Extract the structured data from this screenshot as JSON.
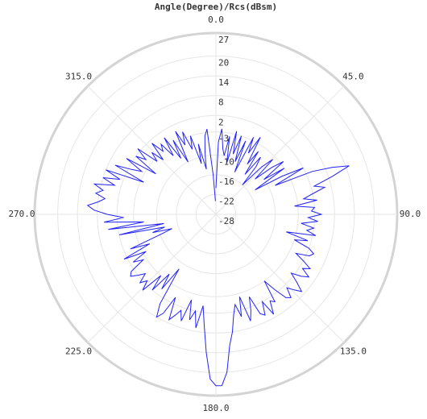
{
  "chart_data": {
    "type": "polar-line",
    "title": "Angle(Degree)/Rcs(dBsm)",
    "x": [
      0,
      2,
      4,
      6,
      8,
      10,
      12,
      14,
      16,
      18,
      20,
      22,
      24,
      26,
      28,
      30,
      32,
      34,
      36,
      38,
      40,
      42,
      44,
      46,
      48,
      50,
      52,
      54,
      56,
      58,
      60,
      62,
      64,
      66,
      68,
      70,
      72,
      74,
      76,
      78,
      80,
      82,
      84,
      86,
      88,
      90,
      92,
      94,
      96,
      98,
      100,
      102,
      104,
      106,
      108,
      110,
      112,
      114,
      116,
      118,
      120,
      122,
      124,
      126,
      128,
      130,
      132,
      134,
      136,
      138,
      140,
      142,
      144,
      146,
      148,
      150,
      152,
      154,
      156,
      158,
      160,
      162,
      164,
      166,
      168,
      170,
      172,
      174,
      176,
      178,
      180,
      182,
      184,
      186,
      188,
      190,
      192,
      194,
      196,
      198,
      200,
      202,
      204,
      206,
      208,
      210,
      212,
      214,
      216,
      218,
      220,
      222,
      224,
      226,
      228,
      230,
      232,
      234,
      236,
      238,
      240,
      242,
      244,
      246,
      248,
      250,
      252,
      254,
      256,
      258,
      260,
      262,
      264,
      266,
      268,
      270,
      272,
      274,
      276,
      278,
      280,
      282,
      284,
      286,
      288,
      290,
      292,
      294,
      296,
      298,
      300,
      302,
      304,
      306,
      308,
      310,
      312,
      314,
      316,
      318,
      320,
      322,
      324,
      326,
      328,
      330,
      332,
      334,
      336,
      338,
      340,
      342,
      344,
      346,
      348,
      350,
      352,
      354,
      356,
      358
    ],
    "values": [
      -20,
      -6,
      -2,
      -8,
      -10,
      -4,
      -12,
      -2,
      -9,
      -3,
      -11,
      -4,
      -14,
      -2,
      -7,
      -1,
      -10,
      -5,
      -13,
      -6,
      -9,
      -16,
      -8,
      -4,
      -12,
      -6,
      -2,
      -10,
      -3,
      -14,
      -5,
      2,
      -8,
      4,
      10,
      15,
      9,
      3,
      6,
      2,
      -1,
      3,
      -4,
      2,
      1,
      4,
      0,
      3,
      -2,
      2,
      0,
      3,
      -6,
      1,
      -3,
      2,
      4,
      3,
      -1,
      2,
      5,
      3,
      6,
      4,
      1,
      4,
      7,
      5,
      3,
      6,
      5,
      1,
      -3,
      4,
      3,
      7,
      2,
      6,
      5,
      -1,
      3,
      6,
      -2,
      4,
      0,
      3,
      8,
      12,
      20,
      24,
      24,
      22,
      14,
      6,
      0,
      7,
      2,
      5,
      -1,
      6,
      3,
      5,
      7,
      0,
      6,
      8,
      4,
      -8,
      0,
      -5,
      2,
      -3,
      4,
      1,
      3,
      0,
      2,
      4,
      3,
      -2,
      1,
      -4,
      3,
      -6,
      0,
      -10,
      -14,
      -8,
      -12,
      2,
      -12,
      5,
      -6,
      6,
      0,
      5,
      9,
      11,
      8,
      6,
      9,
      7,
      10,
      4,
      8,
      3,
      8,
      -4,
      6,
      1,
      -2,
      4,
      -6,
      2,
      -1,
      3,
      -4,
      -1,
      -5,
      1,
      -3,
      -1,
      -6,
      0,
      -8,
      -2,
      -10,
      0,
      -5,
      -1,
      -7,
      -3,
      -12,
      -6,
      -14,
      -9,
      -4,
      -2,
      -16,
      -24
    ],
    "color": "#2222ff",
    "xticks": [
      {
        "value": 0,
        "label": "0.0"
      },
      {
        "value": 45,
        "label": "45.0"
      },
      {
        "value": 90,
        "label": "90.0"
      },
      {
        "value": 135,
        "label": "135.0"
      },
      {
        "value": 180,
        "label": "180.0"
      },
      {
        "value": 225,
        "label": "225.0"
      },
      {
        "value": 270,
        "label": "270.0"
      },
      {
        "value": 315,
        "label": "315.0"
      }
    ],
    "ylim": [
      -28,
      27
    ],
    "yticks": [
      27,
      20,
      14,
      8,
      2,
      -3,
      -10,
      -16,
      -22,
      -28
    ]
  }
}
